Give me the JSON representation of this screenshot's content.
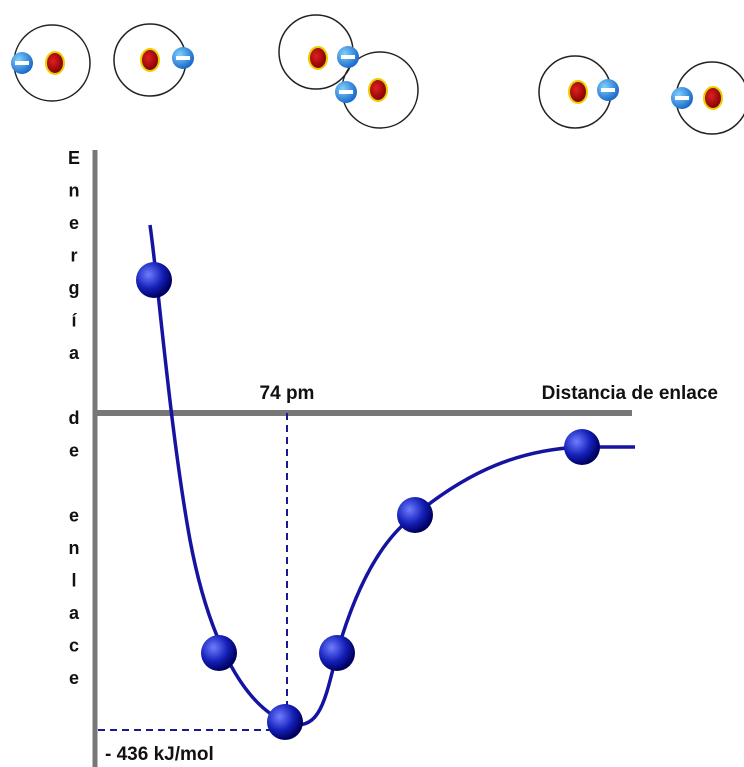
{
  "axis_label_y": "Energía de enlace",
  "axis_label_x": "Distancia de enlace",
  "bond_length_label": "74 pm",
  "bond_energy_label": "- 436 kJ/mol"
}
